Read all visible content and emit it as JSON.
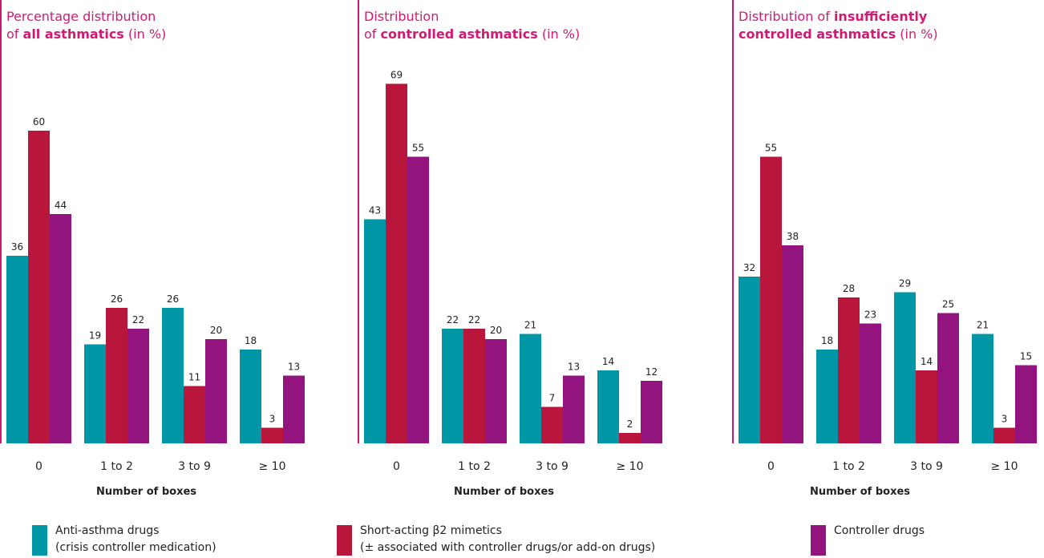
{
  "colors": {
    "accent": "#d11a73",
    "series": [
      "#0096a6",
      "#b8163a",
      "#93137f"
    ]
  },
  "chart_data": [
    {
      "type": "bar",
      "title_parts": [
        {
          "text": "Percentage distribution",
          "bold": false,
          "break": true
        },
        {
          "text": "of ",
          "bold": false
        },
        {
          "text": "all asthmatics",
          "bold": true
        },
        {
          "text": " (in %)",
          "bold": false
        }
      ],
      "xlabel": "Number of boxes",
      "categories": [
        "0",
        "1 to 2",
        "3 to 9",
        "≥ 10"
      ],
      "series": [
        {
          "name": "Anti-asthma drugs (crisis controller medication)",
          "values": [
            36,
            19,
            26,
            18
          ]
        },
        {
          "name": "Short-acting β2 mimetics (± associated with controller drugs/or add-on drugs)",
          "values": [
            60,
            26,
            11,
            3
          ]
        },
        {
          "name": "Controller drugs",
          "values": [
            44,
            22,
            20,
            13
          ]
        }
      ],
      "ylim": [
        0,
        75
      ]
    },
    {
      "type": "bar",
      "title_parts": [
        {
          "text": "Distribution",
          "bold": false,
          "break": true
        },
        {
          "text": "of ",
          "bold": false
        },
        {
          "text": "controlled asthmatics",
          "bold": true
        },
        {
          "text": " (in %)",
          "bold": false
        }
      ],
      "xlabel": "Number of boxes",
      "categories": [
        "0",
        "1 to 2",
        "3 to 9",
        "≥ 10"
      ],
      "series": [
        {
          "name": "Anti-asthma drugs (crisis controller medication)",
          "values": [
            43,
            22,
            21,
            14
          ]
        },
        {
          "name": "Short-acting β2 mimetics (± associated with controller drugs/or add-on drugs)",
          "values": [
            69,
            22,
            7,
            2
          ]
        },
        {
          "name": "Controller drugs",
          "values": [
            55,
            20,
            13,
            12
          ]
        }
      ],
      "ylim": [
        0,
        75
      ]
    },
    {
      "type": "bar",
      "title_parts": [
        {
          "text": "Distribution of ",
          "bold": false
        },
        {
          "text": "insufficiently",
          "bold": true,
          "break": true
        },
        {
          "text": "controlled asthmatics",
          "bold": true
        },
        {
          "text": " (in %)",
          "bold": false
        }
      ],
      "xlabel": "Number of boxes",
      "categories": [
        "0",
        "1 to 2",
        "3 to 9",
        "≥ 10"
      ],
      "series": [
        {
          "name": "Anti-asthma drugs (crisis controller medication)",
          "values": [
            32,
            18,
            29,
            21
          ]
        },
        {
          "name": "Short-acting β2 mimetics (± associated with controller drugs/or add-on drugs)",
          "values": [
            55,
            28,
            14,
            3
          ]
        },
        {
          "name": "Controller drugs",
          "values": [
            38,
            23,
            25,
            15
          ]
        }
      ],
      "ylim": [
        0,
        75
      ]
    }
  ],
  "legend": [
    {
      "line1": "Anti-asthma drugs",
      "line2": "(crisis controller medication)",
      "color": "#0096a6"
    },
    {
      "line1": "Short-acting β2 mimetics",
      "line2": "(± associated with controller drugs/or add-on drugs)",
      "color": "#b8163a"
    },
    {
      "line1": "Controller drugs",
      "line2": "",
      "color": "#93137f"
    }
  ]
}
